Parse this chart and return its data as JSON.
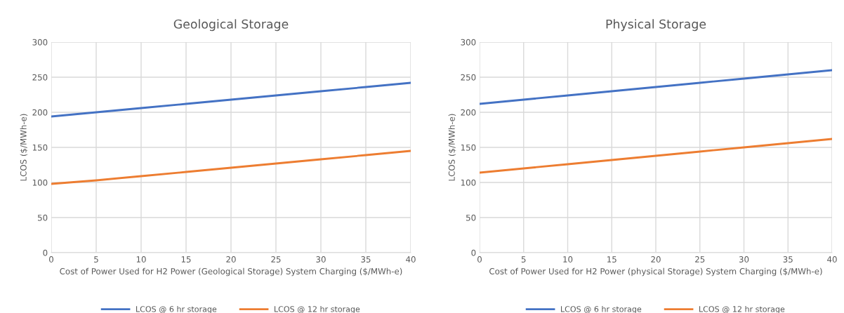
{
  "chart_data": [
    {
      "type": "line",
      "title": "Geological Storage",
      "xlabel": "Cost of Power Used for H2 Power (Geological Storage) System Charging ($/MWh-e)",
      "ylabel": "LCOS ($/MWh-e)",
      "x": [
        0,
        5,
        10,
        15,
        20,
        25,
        30,
        35,
        40
      ],
      "series": [
        {
          "name": "LCOS @ 6 hr storage",
          "color": "#4472c4",
          "values": [
            194,
            200,
            206,
            212,
            218,
            224,
            230,
            236,
            242
          ]
        },
        {
          "name": "LCOS @ 12 hr storage",
          "color": "#ed7d31",
          "values": [
            98,
            103,
            109,
            115,
            121,
            127,
            133,
            139,
            145
          ]
        }
      ],
      "xlim": [
        0,
        40
      ],
      "xticks": [
        0,
        5,
        10,
        15,
        20,
        25,
        30,
        35,
        40
      ],
      "ylim": [
        0,
        300
      ],
      "yticks": [
        0,
        50,
        100,
        150,
        200,
        250,
        300
      ],
      "grid": true,
      "legend": "bottom"
    },
    {
      "type": "line",
      "title": "Physical Storage",
      "xlabel": "Cost of Power Used for H2 Power (physical Storage) System Charging ($/MWh-e)",
      "ylabel": "LCOS ($/MWh-e)",
      "x": [
        0,
        5,
        10,
        15,
        20,
        25,
        30,
        35,
        40
      ],
      "series": [
        {
          "name": "LCOS @ 6 hr storage",
          "color": "#4472c4",
          "values": [
            212,
            218,
            224,
            230,
            236,
            242,
            248,
            254,
            260
          ]
        },
        {
          "name": "LCOS @ 12 hr storage",
          "color": "#ed7d31",
          "values": [
            114,
            120,
            126,
            132,
            138,
            144,
            150,
            156,
            162
          ]
        }
      ],
      "xlim": [
        0,
        40
      ],
      "xticks": [
        0,
        5,
        10,
        15,
        20,
        25,
        30,
        35,
        40
      ],
      "ylim": [
        0,
        300
      ],
      "yticks": [
        0,
        50,
        100,
        150,
        200,
        250,
        300
      ],
      "grid": true,
      "legend": "bottom"
    }
  ]
}
